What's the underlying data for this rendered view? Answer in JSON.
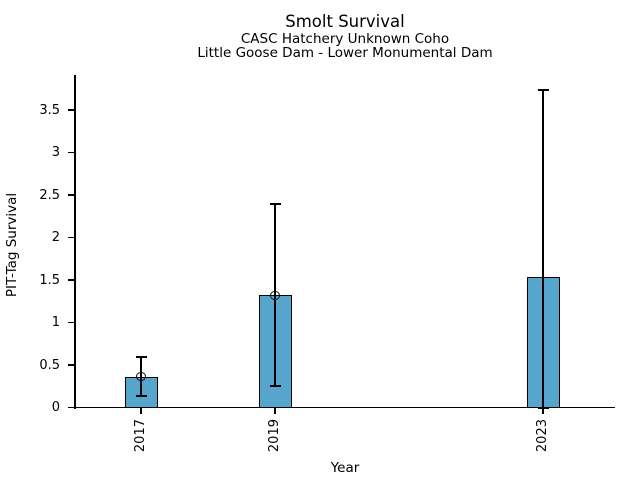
{
  "chart_data": {
    "type": "bar",
    "title": "Smolt Survival",
    "subtitle1": "CASC Hatchery Unknown Coho",
    "subtitle2": "Little Goose Dam - Lower Monumental Dam",
    "xlabel": "Year",
    "ylabel": "PIT-Tag Survival",
    "bar_color": "#56a5cd",
    "edge_color": "#000000",
    "error_color": "#000000",
    "ylim": [
      0,
      3.91
    ],
    "xlim": [
      2016,
      2024.1
    ],
    "grid": false,
    "legend": null,
    "y_ticks": [
      "0",
      "0.5",
      "1",
      "1.5",
      "2",
      "2.5",
      "3",
      "3.5"
    ],
    "x_ticks": [
      "2017",
      "2019",
      "2023"
    ],
    "categories": [
      2017,
      2019,
      2023
    ],
    "series": [
      {
        "year": 2017,
        "value": 0.36,
        "err_lo": 0.13,
        "err_hi": 0.6,
        "marker": true
      },
      {
        "year": 2019,
        "value": 1.32,
        "err_lo": 0.25,
        "err_hi": 2.39,
        "marker": true
      },
      {
        "year": 2023,
        "value": 1.53,
        "err_lo": 0.0,
        "err_hi": 3.73,
        "marker": false
      }
    ]
  }
}
